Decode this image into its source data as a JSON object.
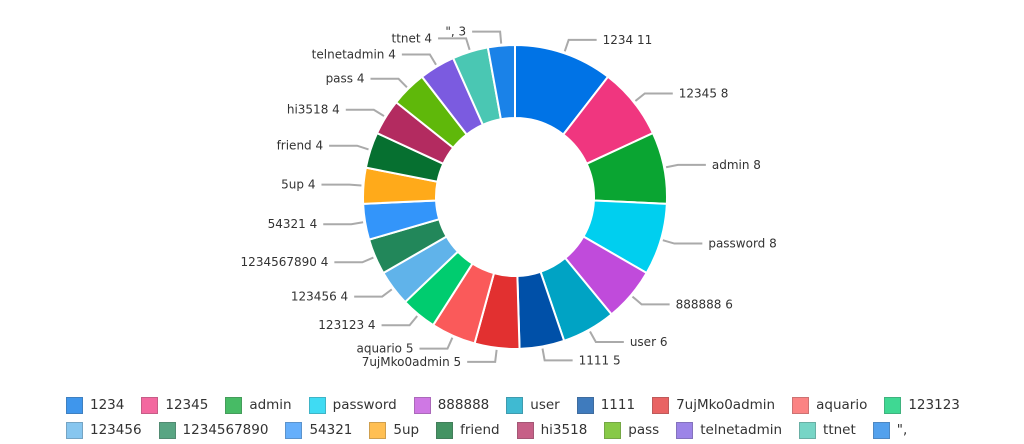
{
  "chart_data": {
    "type": "pie",
    "variant": "donut",
    "title": "",
    "legend_position": "bottom",
    "slices": [
      {
        "label": "1234",
        "value": 11,
        "color": "#0073e6"
      },
      {
        "label": "12345",
        "value": 8,
        "color": "#f0367f"
      },
      {
        "label": "admin",
        "value": 8,
        "color": "#0aa532"
      },
      {
        "label": "password",
        "value": 8,
        "color": "#00cfef"
      },
      {
        "label": "888888",
        "value": 6,
        "color": "#c04bdb"
      },
      {
        "label": "user",
        "value": 6,
        "color": "#00a3c4"
      },
      {
        "label": "1111",
        "value": 5,
        "color": "#0050a8"
      },
      {
        "label": "7ujMko0admin",
        "value": 5,
        "color": "#e23030"
      },
      {
        "label": "aquario",
        "value": 5,
        "color": "#fa5a5a"
      },
      {
        "label": "123123",
        "value": 4,
        "color": "#00cc6f"
      },
      {
        "label": "123456",
        "value": 4,
        "color": "#60b3ea"
      },
      {
        "label": "1234567890",
        "value": 4,
        "color": "#22875a"
      },
      {
        "label": "54321",
        "value": 4,
        "color": "#3395fa"
      },
      {
        "label": "5up",
        "value": 4,
        "color": "#ffaa1a"
      },
      {
        "label": "friend",
        "value": 4,
        "color": "#067030"
      },
      {
        "label": "hi3518",
        "value": 4,
        "color": "#b32b60"
      },
      {
        "label": "pass",
        "value": 4,
        "color": "#5fb80a"
      },
      {
        "label": "telnetadmin",
        "value": 4,
        "color": "#7b5be0"
      },
      {
        "label": "ttnet",
        "value": 4,
        "color": "#4ac7b3"
      },
      {
        "label": "\",",
        "value": 3,
        "color": "#1a82e8"
      }
    ]
  }
}
